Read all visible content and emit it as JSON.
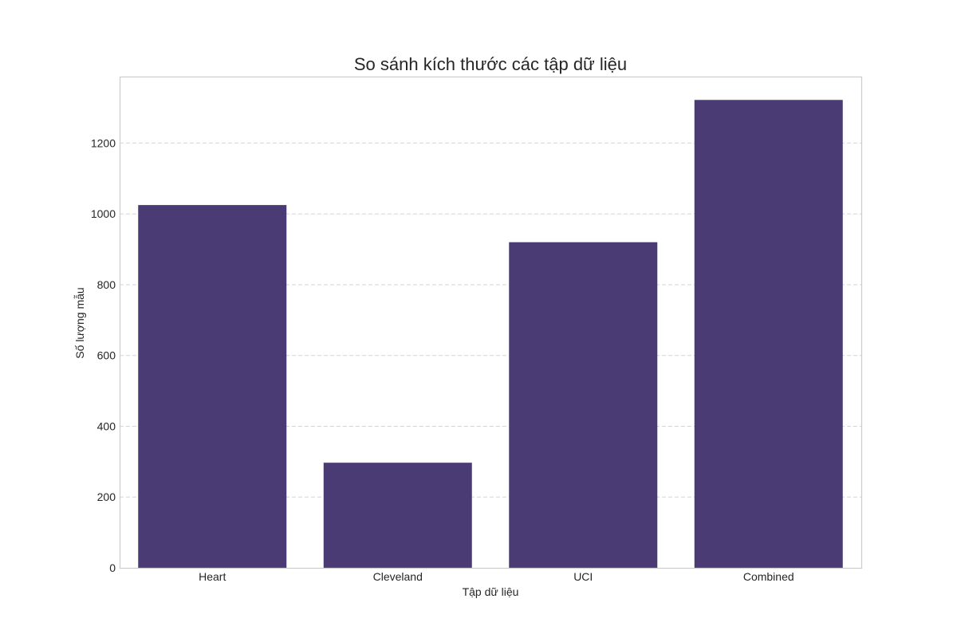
{
  "chart_data": {
    "type": "bar",
    "title": "So sánh kích thước các tập dữ liệu",
    "xlabel": "Tập dữ liệu",
    "ylabel": "Số lượng mẫu",
    "categories": [
      "Heart",
      "Cleveland",
      "UCI",
      "Combined"
    ],
    "values": [
      1025,
      297,
      920,
      1322
    ],
    "ylim": [
      0,
      1388
    ],
    "yticks": [
      0,
      200,
      400,
      600,
      800,
      1000,
      1200
    ],
    "grid": true,
    "grid_axis": "y",
    "colors": {
      "bar": "#4a3b74"
    }
  }
}
